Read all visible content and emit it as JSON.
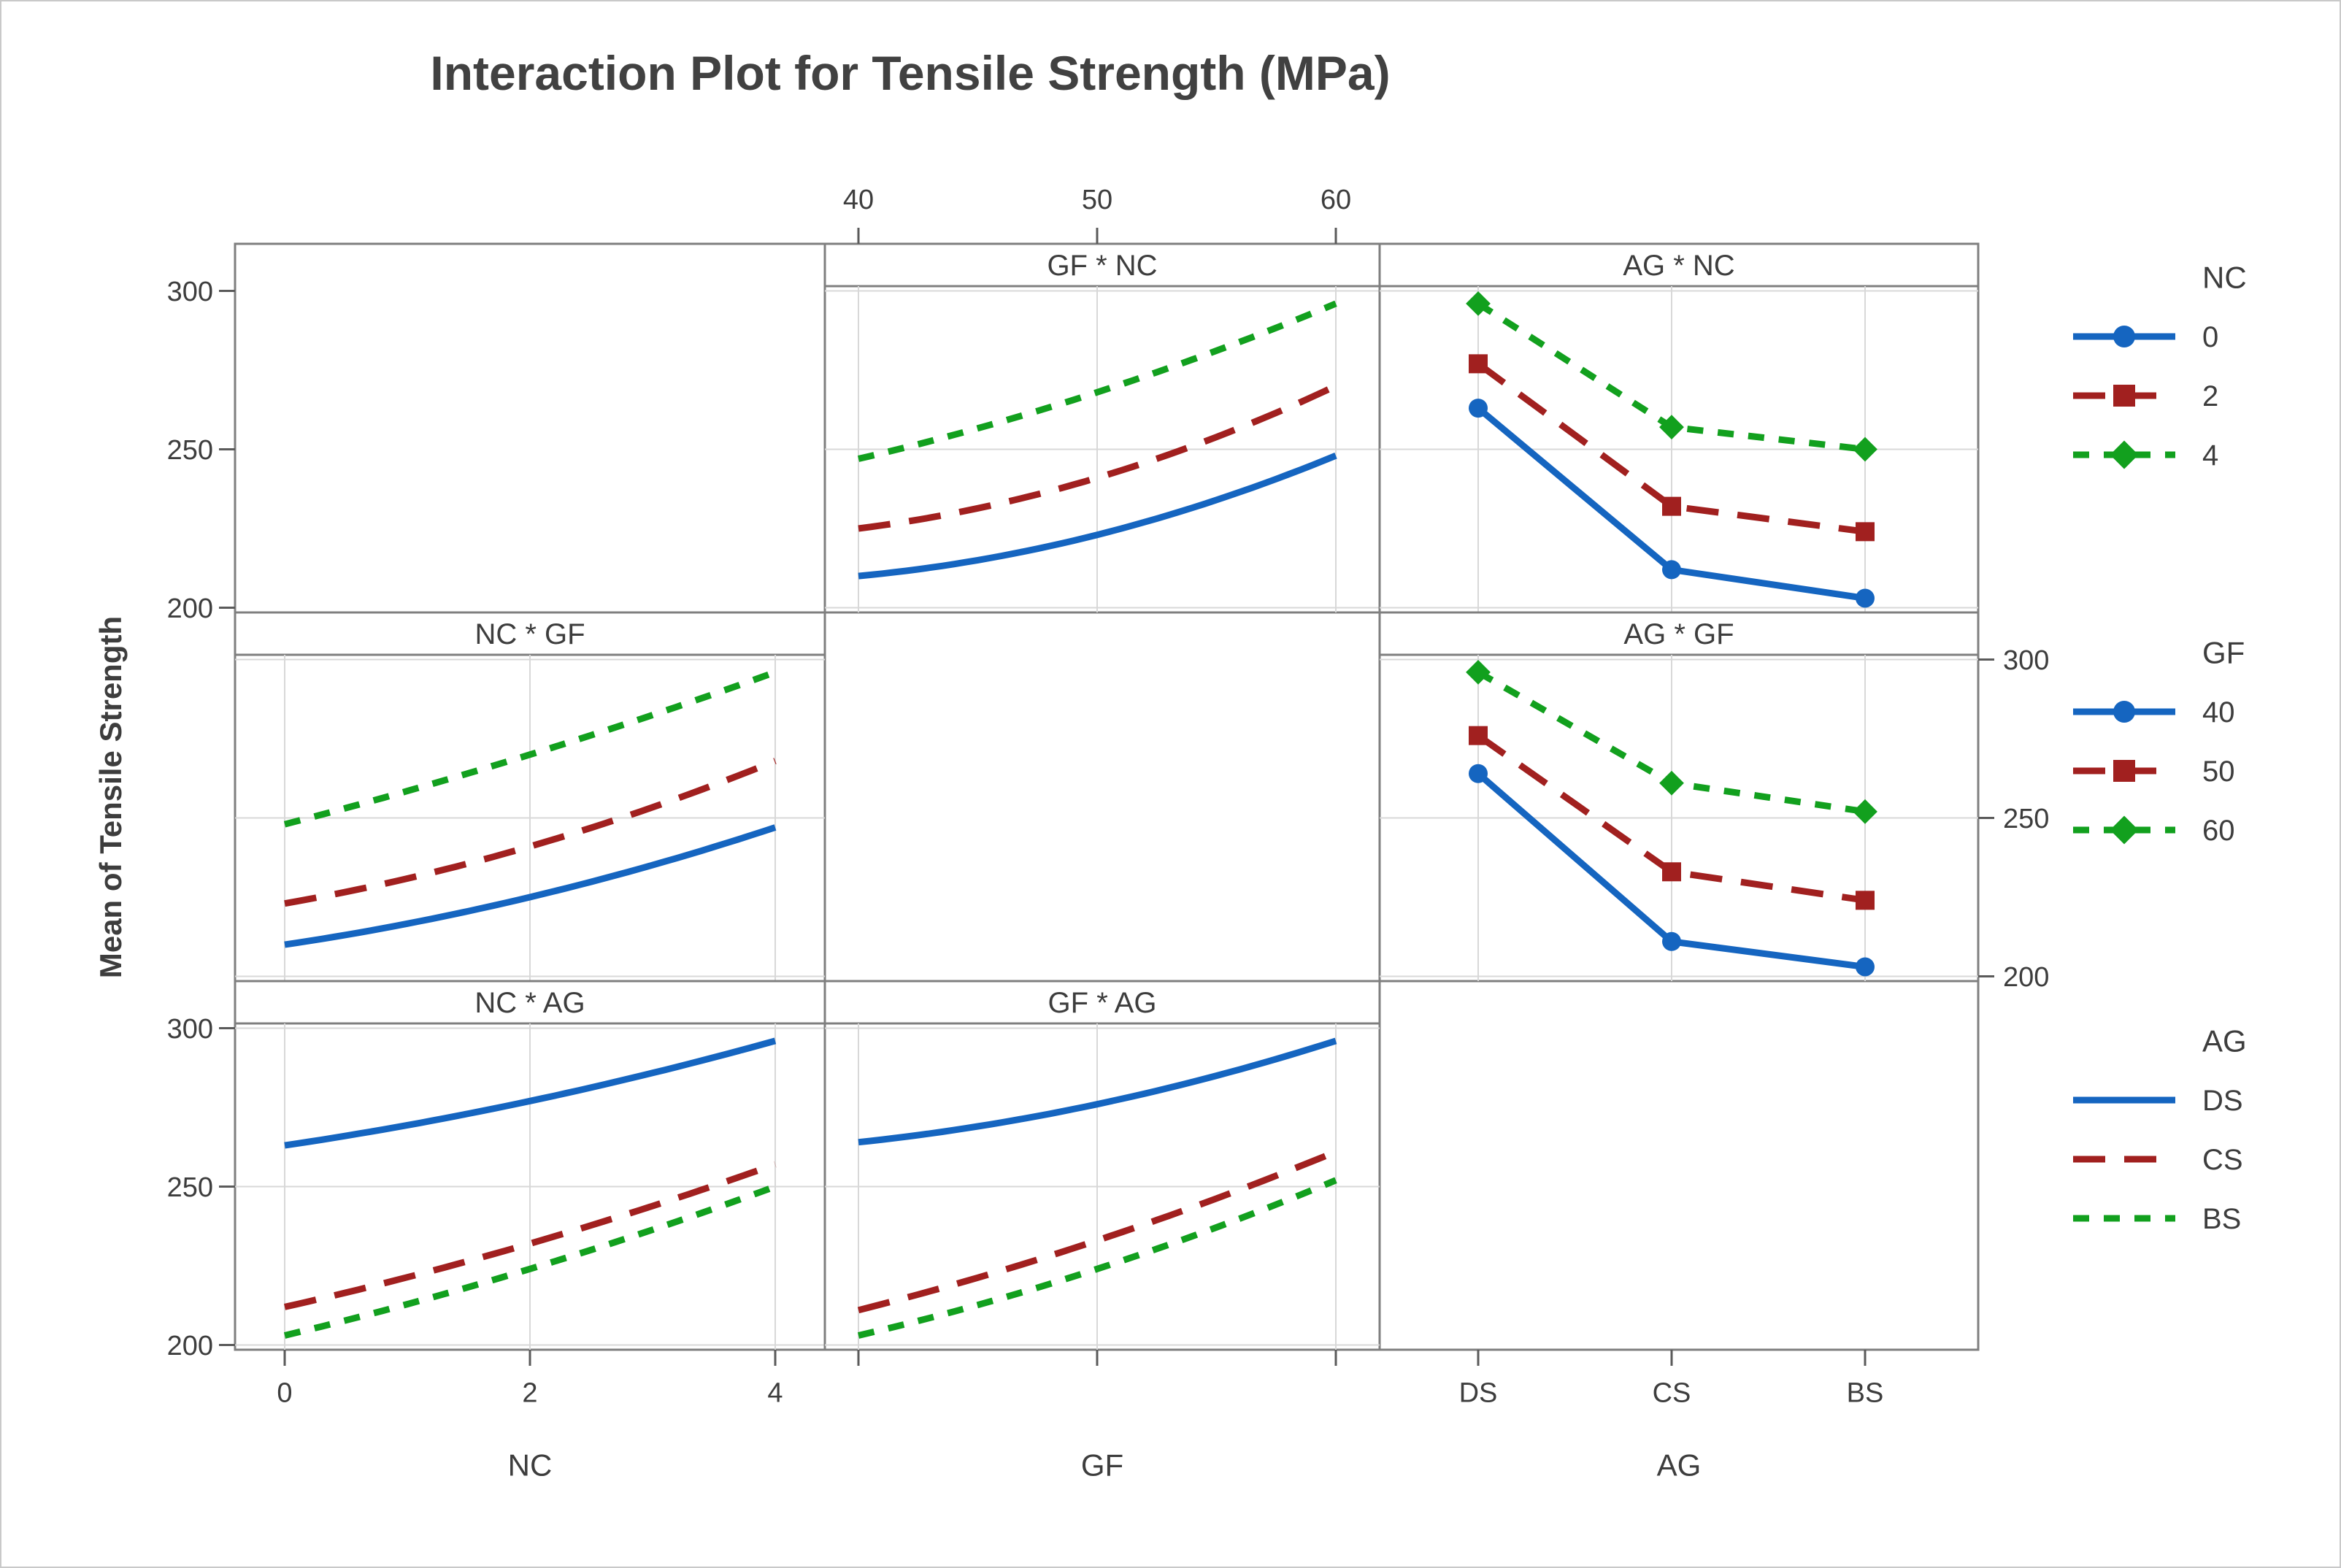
{
  "title": "Interaction Plot for Tensile Strength (MPa)",
  "chart_data": {
    "type": "line",
    "title": "Interaction Plot for Tensile Strength (MPa)",
    "ylabel": "Mean of Tensile Strength",
    "y_ticks": [
      300,
      250,
      200
    ],
    "y_range": [
      198.5,
      301.5
    ],
    "grid": true,
    "factors": {
      "NC": [
        "0",
        "2",
        "4"
      ],
      "GF": [
        "40",
        "50",
        "60"
      ],
      "AG": [
        "DS",
        "CS",
        "BS"
      ]
    },
    "series_styles": [
      {
        "color": "#1565c0",
        "dash": "solid",
        "marker": "circle"
      },
      {
        "color": "#a1201f",
        "dash": "long",
        "marker": "square"
      },
      {
        "color": "#12a01e",
        "dash": "short",
        "marker": "diamond"
      }
    ],
    "panels": [
      {
        "row": 0,
        "col": 1,
        "title": "GF * NC",
        "x_factor": "GF",
        "line_factor": "NC",
        "smooth": true,
        "markers": false,
        "series": [
          {
            "name": "0",
            "values": [
              210,
              223,
              248
            ]
          },
          {
            "name": "2",
            "values": [
              225,
              241,
              270
            ]
          },
          {
            "name": "4",
            "values": [
              247,
              268,
              296
            ]
          }
        ]
      },
      {
        "row": 0,
        "col": 2,
        "title": "AG * NC",
        "x_factor": "AG",
        "line_factor": "NC",
        "smooth": false,
        "markers": true,
        "series": [
          {
            "name": "0",
            "values": [
              263,
              212,
              203
            ]
          },
          {
            "name": "2",
            "values": [
              277,
              232,
              224
            ]
          },
          {
            "name": "4",
            "values": [
              296,
              257,
              250
            ]
          }
        ]
      },
      {
        "row": 1,
        "col": 0,
        "title": "NC * GF",
        "x_factor": "NC",
        "line_factor": "GF",
        "smooth": true,
        "markers": false,
        "series": [
          {
            "name": "40",
            "values": [
              210,
              225,
              247
            ]
          },
          {
            "name": "50",
            "values": [
              223,
              241,
              268
            ]
          },
          {
            "name": "60",
            "values": [
              248,
              270,
              296
            ]
          }
        ]
      },
      {
        "row": 1,
        "col": 2,
        "title": "AG * GF",
        "x_factor": "AG",
        "line_factor": "GF",
        "smooth": false,
        "markers": true,
        "series": [
          {
            "name": "40",
            "values": [
              264,
              211,
              203
            ]
          },
          {
            "name": "50",
            "values": [
              276,
              233,
              224
            ]
          },
          {
            "name": "60",
            "values": [
              296,
              261,
              252
            ]
          }
        ]
      },
      {
        "row": 2,
        "col": 0,
        "title": "NC * AG",
        "x_factor": "NC",
        "line_factor": "AG",
        "smooth": true,
        "markers": false,
        "series": [
          {
            "name": "DS",
            "values": [
              263,
              277,
              296
            ]
          },
          {
            "name": "CS",
            "values": [
              212,
              232,
              257
            ]
          },
          {
            "name": "BS",
            "values": [
              203,
              224,
              250
            ]
          }
        ]
      },
      {
        "row": 2,
        "col": 1,
        "title": "GF * AG",
        "x_factor": "GF",
        "line_factor": "AG",
        "smooth": true,
        "markers": false,
        "series": [
          {
            "name": "DS",
            "values": [
              264,
              276,
              296
            ]
          },
          {
            "name": "CS",
            "values": [
              211,
              233,
              261
            ]
          },
          {
            "name": "BS",
            "values": [
              203,
              224,
              252
            ]
          }
        ]
      }
    ],
    "axes": {
      "left": {
        "rows": [
          0,
          2
        ],
        "tick_labels": [
          "300",
          "250",
          "200"
        ],
        "tick_values": [
          300,
          250,
          200
        ]
      },
      "right": {
        "rows": [
          1
        ],
        "tick_labels": [
          "300",
          "250",
          "200"
        ],
        "tick_values": [
          300,
          250,
          200
        ]
      },
      "top": {
        "col": 1,
        "tick_labels": [
          "40",
          "50",
          "60"
        ]
      },
      "bottom": [
        {
          "col": 0,
          "tick_labels": [
            "0",
            "2",
            "4"
          ],
          "title": "NC"
        },
        {
          "col": 1,
          "tick_labels": [
            "",
            "",
            ""
          ],
          "title": "GF"
        },
        {
          "col": 2,
          "tick_labels": [
            "DS",
            "CS",
            "BS"
          ],
          "title": "AG"
        }
      ]
    },
    "legends": [
      {
        "title": "NC",
        "entries": [
          "0",
          "2",
          "4"
        ],
        "show_markers": true
      },
      {
        "title": "GF",
        "entries": [
          "40",
          "50",
          "60"
        ],
        "show_markers": true
      },
      {
        "title": "AG",
        "entries": [
          "DS",
          "CS",
          "BS"
        ],
        "show_markers": false
      }
    ]
  },
  "colors": {
    "panel_border": "#7f7f7f",
    "gridline": "#d8d8d8",
    "tick": "#5a5a5a",
    "text": "#3d3d3d",
    "title_text": "#414141",
    "background": "#ffffff"
  }
}
